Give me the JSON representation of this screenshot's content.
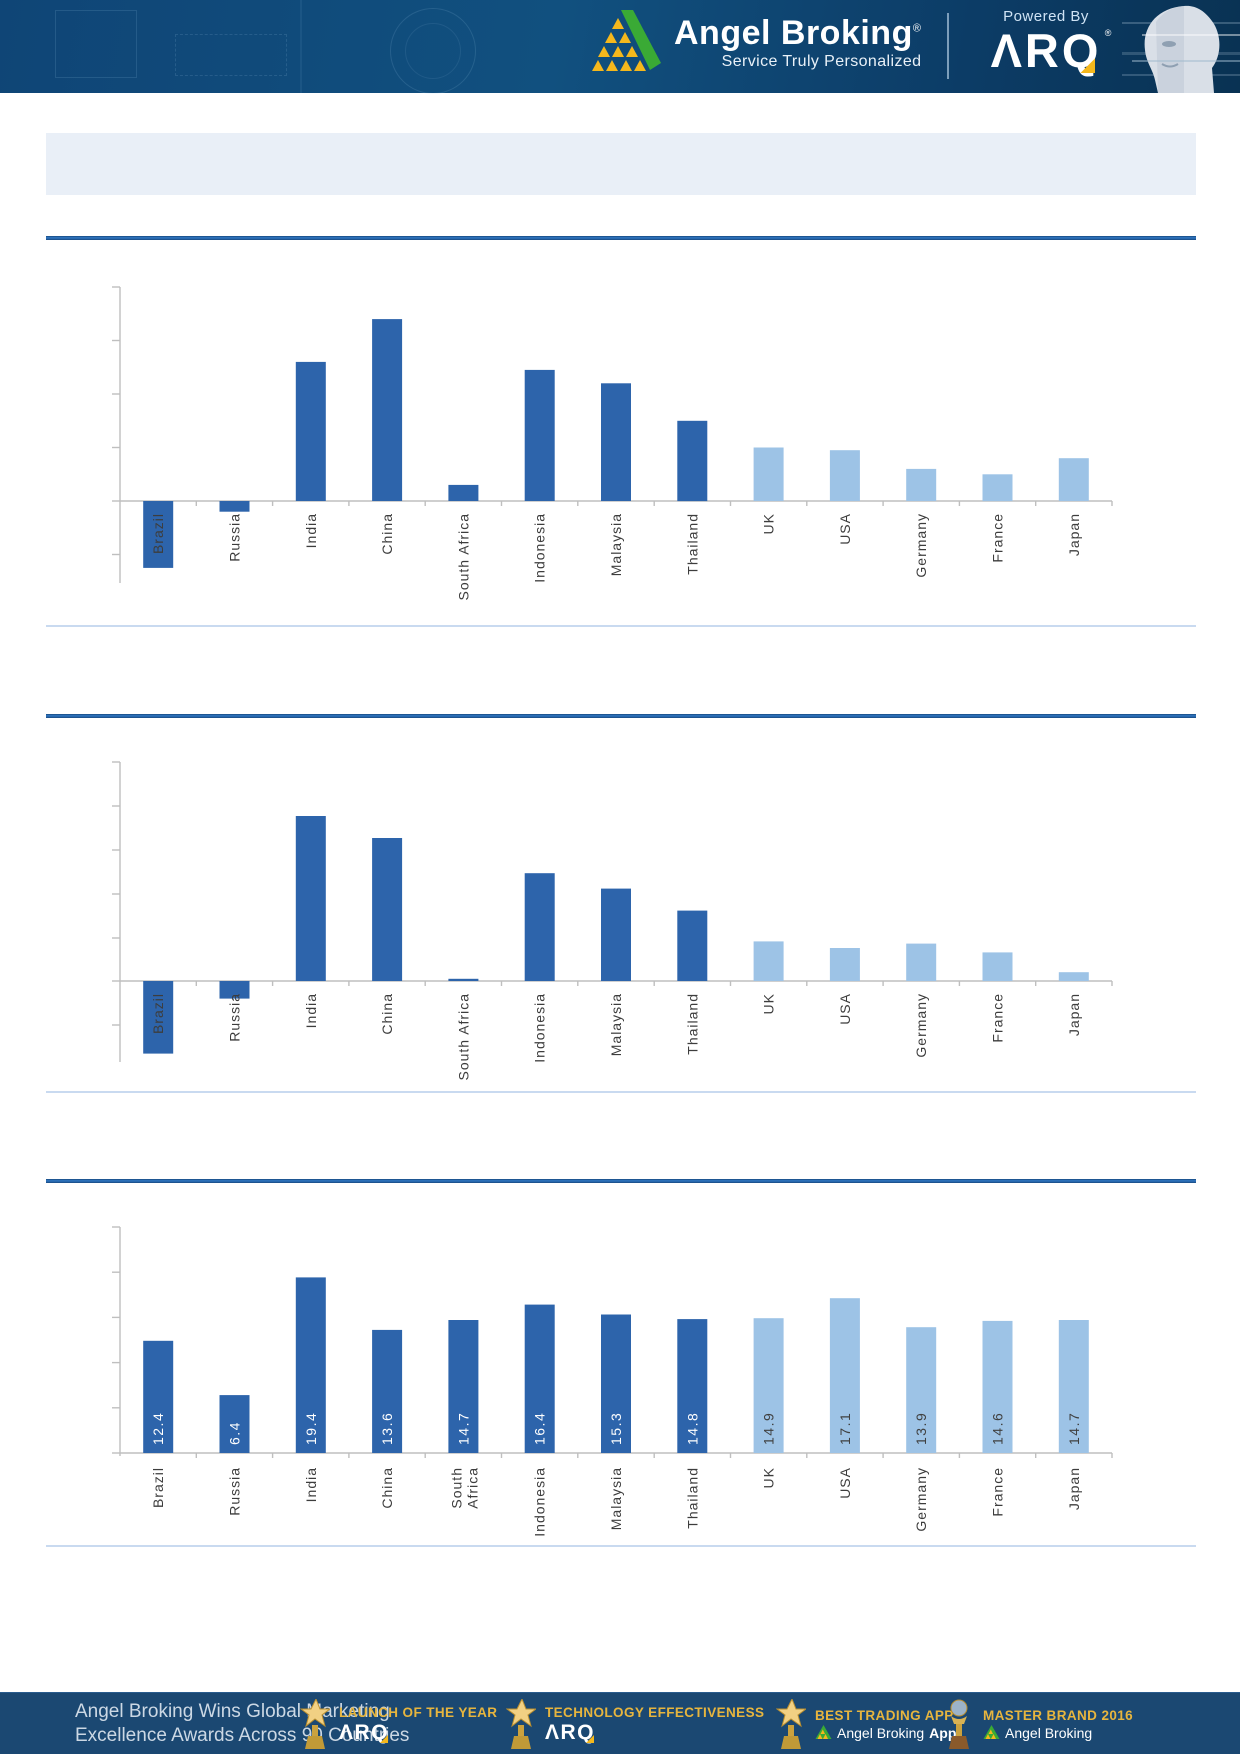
{
  "header": {
    "brand": "Angel Broking",
    "brand_reg": "®",
    "tagline": "Service Truly Personalized",
    "powered_by": "Powered By",
    "arq": "ΛRQ",
    "arq_reg": "®"
  },
  "banner": {
    "text": ""
  },
  "chart_data": [
    {
      "type": "bar",
      "title": "",
      "categories": [
        "Brazil",
        "Russia",
        "India",
        "China",
        "South Africa",
        "Indonesia",
        "Malaysia",
        "Thailand",
        "UK",
        "USA",
        "Germany",
        "France",
        "Japan"
      ],
      "values": [
        -2.5,
        -0.4,
        5.2,
        6.8,
        0.6,
        4.9,
        4.4,
        3.0,
        2.0,
        1.9,
        1.2,
        1.0,
        1.6
      ],
      "bar_styles": [
        "dark",
        "dark",
        "dark",
        "dark",
        "dark",
        "dark",
        "dark",
        "dark",
        "light",
        "light",
        "light",
        "light",
        "light"
      ],
      "xlabel": "",
      "ylabel": "",
      "ylim": [
        -2,
        8
      ],
      "ytick_step": 2,
      "ytick_labels_visible": false,
      "grid": false,
      "legend": false,
      "data_labels": false,
      "wrap_labels": false
    },
    {
      "type": "bar",
      "title": "",
      "categories": [
        "Brazil",
        "Russia",
        "India",
        "China",
        "South Africa",
        "Indonesia",
        "Malaysia",
        "Thailand",
        "UK",
        "USA",
        "Germany",
        "France",
        "Japan"
      ],
      "values": [
        -3.3,
        -0.8,
        7.5,
        6.5,
        0.1,
        4.9,
        4.2,
        3.2,
        1.8,
        1.5,
        1.7,
        1.3,
        0.4
      ],
      "bar_styles": [
        "dark",
        "dark",
        "dark",
        "dark",
        "dark",
        "dark",
        "dark",
        "dark",
        "light",
        "light",
        "light",
        "light",
        "light"
      ],
      "xlabel": "",
      "ylabel": "",
      "ylim": [
        -2,
        10
      ],
      "ytick_step": 2,
      "ytick_labels_visible": false,
      "grid": false,
      "legend": false,
      "data_labels": false,
      "wrap_labels": false
    },
    {
      "type": "bar",
      "title": "",
      "categories": [
        "Brazil",
        "Russia",
        "India",
        "China",
        "South Africa",
        "Indonesia",
        "Malaysia",
        "Thailand",
        "UK",
        "USA",
        "Germany",
        "France",
        "Japan"
      ],
      "values": [
        12.4,
        6.4,
        19.4,
        13.6,
        14.7,
        16.4,
        15.3,
        14.8,
        14.9,
        17.1,
        13.9,
        14.6,
        14.7
      ],
      "bar_styles": [
        "dark",
        "dark",
        "dark",
        "dark",
        "dark",
        "dark",
        "dark",
        "dark",
        "light",
        "light",
        "light",
        "light",
        "light"
      ],
      "xlabel": "",
      "ylabel": "",
      "ylim": [
        0,
        25
      ],
      "ytick_step": 5,
      "ytick_labels_visible": false,
      "grid": false,
      "legend": false,
      "data_labels": true,
      "wrap_labels": true
    }
  ],
  "footer": {
    "message_line1": "Angel Broking Wins Global Marketing",
    "message_line2": "Excellence Awards Across 90 Countries",
    "awards": [
      {
        "title": "LAUNCH OF THE YEAR",
        "sub": "ΛRQ",
        "sub_bold": "",
        "icon": "star-trophy"
      },
      {
        "title": "TECHNOLOGY EFFECTIVENESS",
        "sub": "ΛRQ",
        "sub_bold": "",
        "icon": "star-trophy"
      },
      {
        "title": "BEST TRADING APP",
        "sub": "Angel Broking",
        "sub_bold": "App",
        "icon": "star-trophy"
      },
      {
        "title": "MASTER BRAND 2016",
        "sub": "Angel Broking",
        "sub_bold": "",
        "icon": "globe-trophy"
      }
    ]
  },
  "colors": {
    "dark_bar": "#2d64ab",
    "light_bar": "#9dc3e6",
    "divider": "#2a6ab0",
    "rule_light": "#c9daf0",
    "banner_bg": "#e9eff7",
    "header_bg": "#0f4576",
    "footer_bg": "#1b4872",
    "gold": "#e7b53e",
    "logo_green": "#3aaa35",
    "logo_yellow": "#f5b81c",
    "axis": "#bfbfbf",
    "label": "#3d3d3d"
  }
}
